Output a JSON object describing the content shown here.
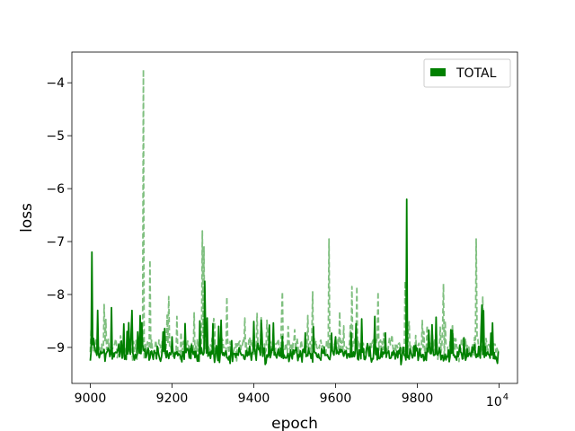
{
  "chart_data": {
    "type": "line",
    "title": "",
    "xlabel": "epoch",
    "ylabel": "loss",
    "xlim": [
      8955,
      10045
    ],
    "ylim": [
      -9.68,
      -3.42
    ],
    "xticks": [
      {
        "value": 9000,
        "label": "9000"
      },
      {
        "value": 9200,
        "label": "9200"
      },
      {
        "value": 9400,
        "label": "9400"
      },
      {
        "value": 9600,
        "label": "9600"
      },
      {
        "value": 9800,
        "label": "9800"
      }
    ],
    "xtick_power": {
      "value": 10000,
      "base": "10",
      "exponent": "4"
    },
    "yticks": [
      {
        "value": -4,
        "label": "−4"
      },
      {
        "value": -5,
        "label": "−5"
      },
      {
        "value": -6,
        "label": "−6"
      },
      {
        "value": -7,
        "label": "−7"
      },
      {
        "value": -8,
        "label": "−8"
      },
      {
        "value": -9,
        "label": "−9"
      }
    ],
    "grid": false,
    "legend": {
      "position": "top-right",
      "entries": [
        {
          "label": "TOTAL",
          "color": "#008000"
        }
      ]
    },
    "x_range": [
      9000,
      9999
    ],
    "series": [
      {
        "name": "TOTAL",
        "style": "solid",
        "color": "#008000",
        "opacity": 1.0,
        "baseline": -9.12,
        "noise": 0.1,
        "seed": 7,
        "spikes": [
          {
            "x": 9001,
            "y": -9.25
          },
          {
            "x": 9004,
            "y": -7.2
          },
          {
            "x": 9007,
            "y": -8.95
          },
          {
            "x": 9018,
            "y": -8.3
          },
          {
            "x": 9052,
            "y": -8.25
          },
          {
            "x": 9090,
            "y": -8.7
          },
          {
            "x": 9122,
            "y": -8.4
          },
          {
            "x": 9200,
            "y": -8.8
          },
          {
            "x": 9232,
            "y": -8.55
          },
          {
            "x": 9268,
            "y": -8.5
          },
          {
            "x": 9280,
            "y": -7.75
          },
          {
            "x": 9300,
            "y": -8.55
          },
          {
            "x": 9420,
            "y": -8.75
          },
          {
            "x": 9600,
            "y": -8.8
          },
          {
            "x": 9775,
            "y": -6.2
          },
          {
            "x": 9940,
            "y": -8.95
          },
          {
            "x": 9958,
            "y": -8.2
          },
          {
            "x": 9996,
            "y": -9.3
          }
        ]
      },
      {
        "name": "",
        "style": "dashed",
        "color": "#008000",
        "opacity": 0.5,
        "baseline": -9.0,
        "noise": 0.13,
        "seed": 19,
        "spikes": [
          {
            "x": 9130,
            "y": -3.75
          },
          {
            "x": 9147,
            "y": -7.35
          },
          {
            "x": 9275,
            "y": -6.8
          },
          {
            "x": 9278,
            "y": -7.1
          },
          {
            "x": 9335,
            "y": -8.05
          },
          {
            "x": 9470,
            "y": -7.95
          },
          {
            "x": 9545,
            "y": -7.95
          },
          {
            "x": 9585,
            "y": -6.95
          },
          {
            "x": 9640,
            "y": -7.85
          },
          {
            "x": 9652,
            "y": -7.85
          },
          {
            "x": 9705,
            "y": -7.95
          },
          {
            "x": 9770,
            "y": -7.75
          },
          {
            "x": 9865,
            "y": -7.8
          },
          {
            "x": 9945,
            "y": -6.95
          },
          {
            "x": 9960,
            "y": -8.05
          }
        ]
      }
    ]
  }
}
